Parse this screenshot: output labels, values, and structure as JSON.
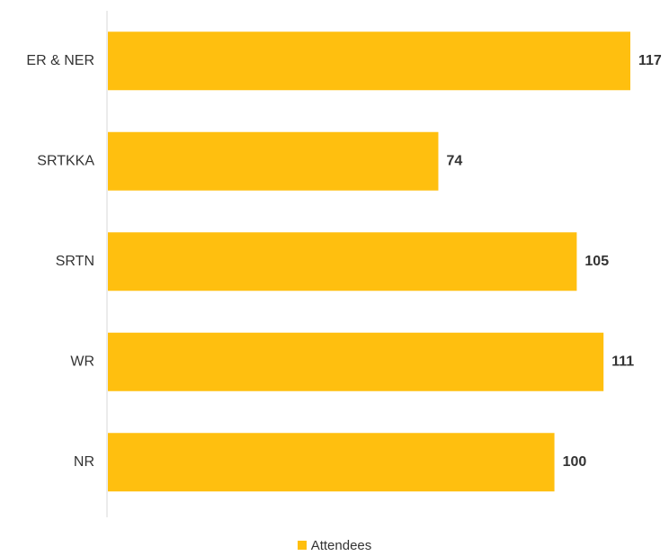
{
  "chart_data": {
    "type": "bar",
    "orientation": "horizontal",
    "categories": [
      "ER & NER",
      "SRTKKA",
      "SRTN",
      "WR",
      "NR"
    ],
    "series": [
      {
        "name": "Attendees",
        "values": [
          117,
          74,
          105,
          111,
          100
        ],
        "color": "#FFBF0F"
      }
    ],
    "data_labels": [
      "117",
      "74",
      "105",
      "111",
      "100"
    ],
    "xlim": [
      0,
      120
    ],
    "grid": false,
    "legend_position": "bottom"
  }
}
